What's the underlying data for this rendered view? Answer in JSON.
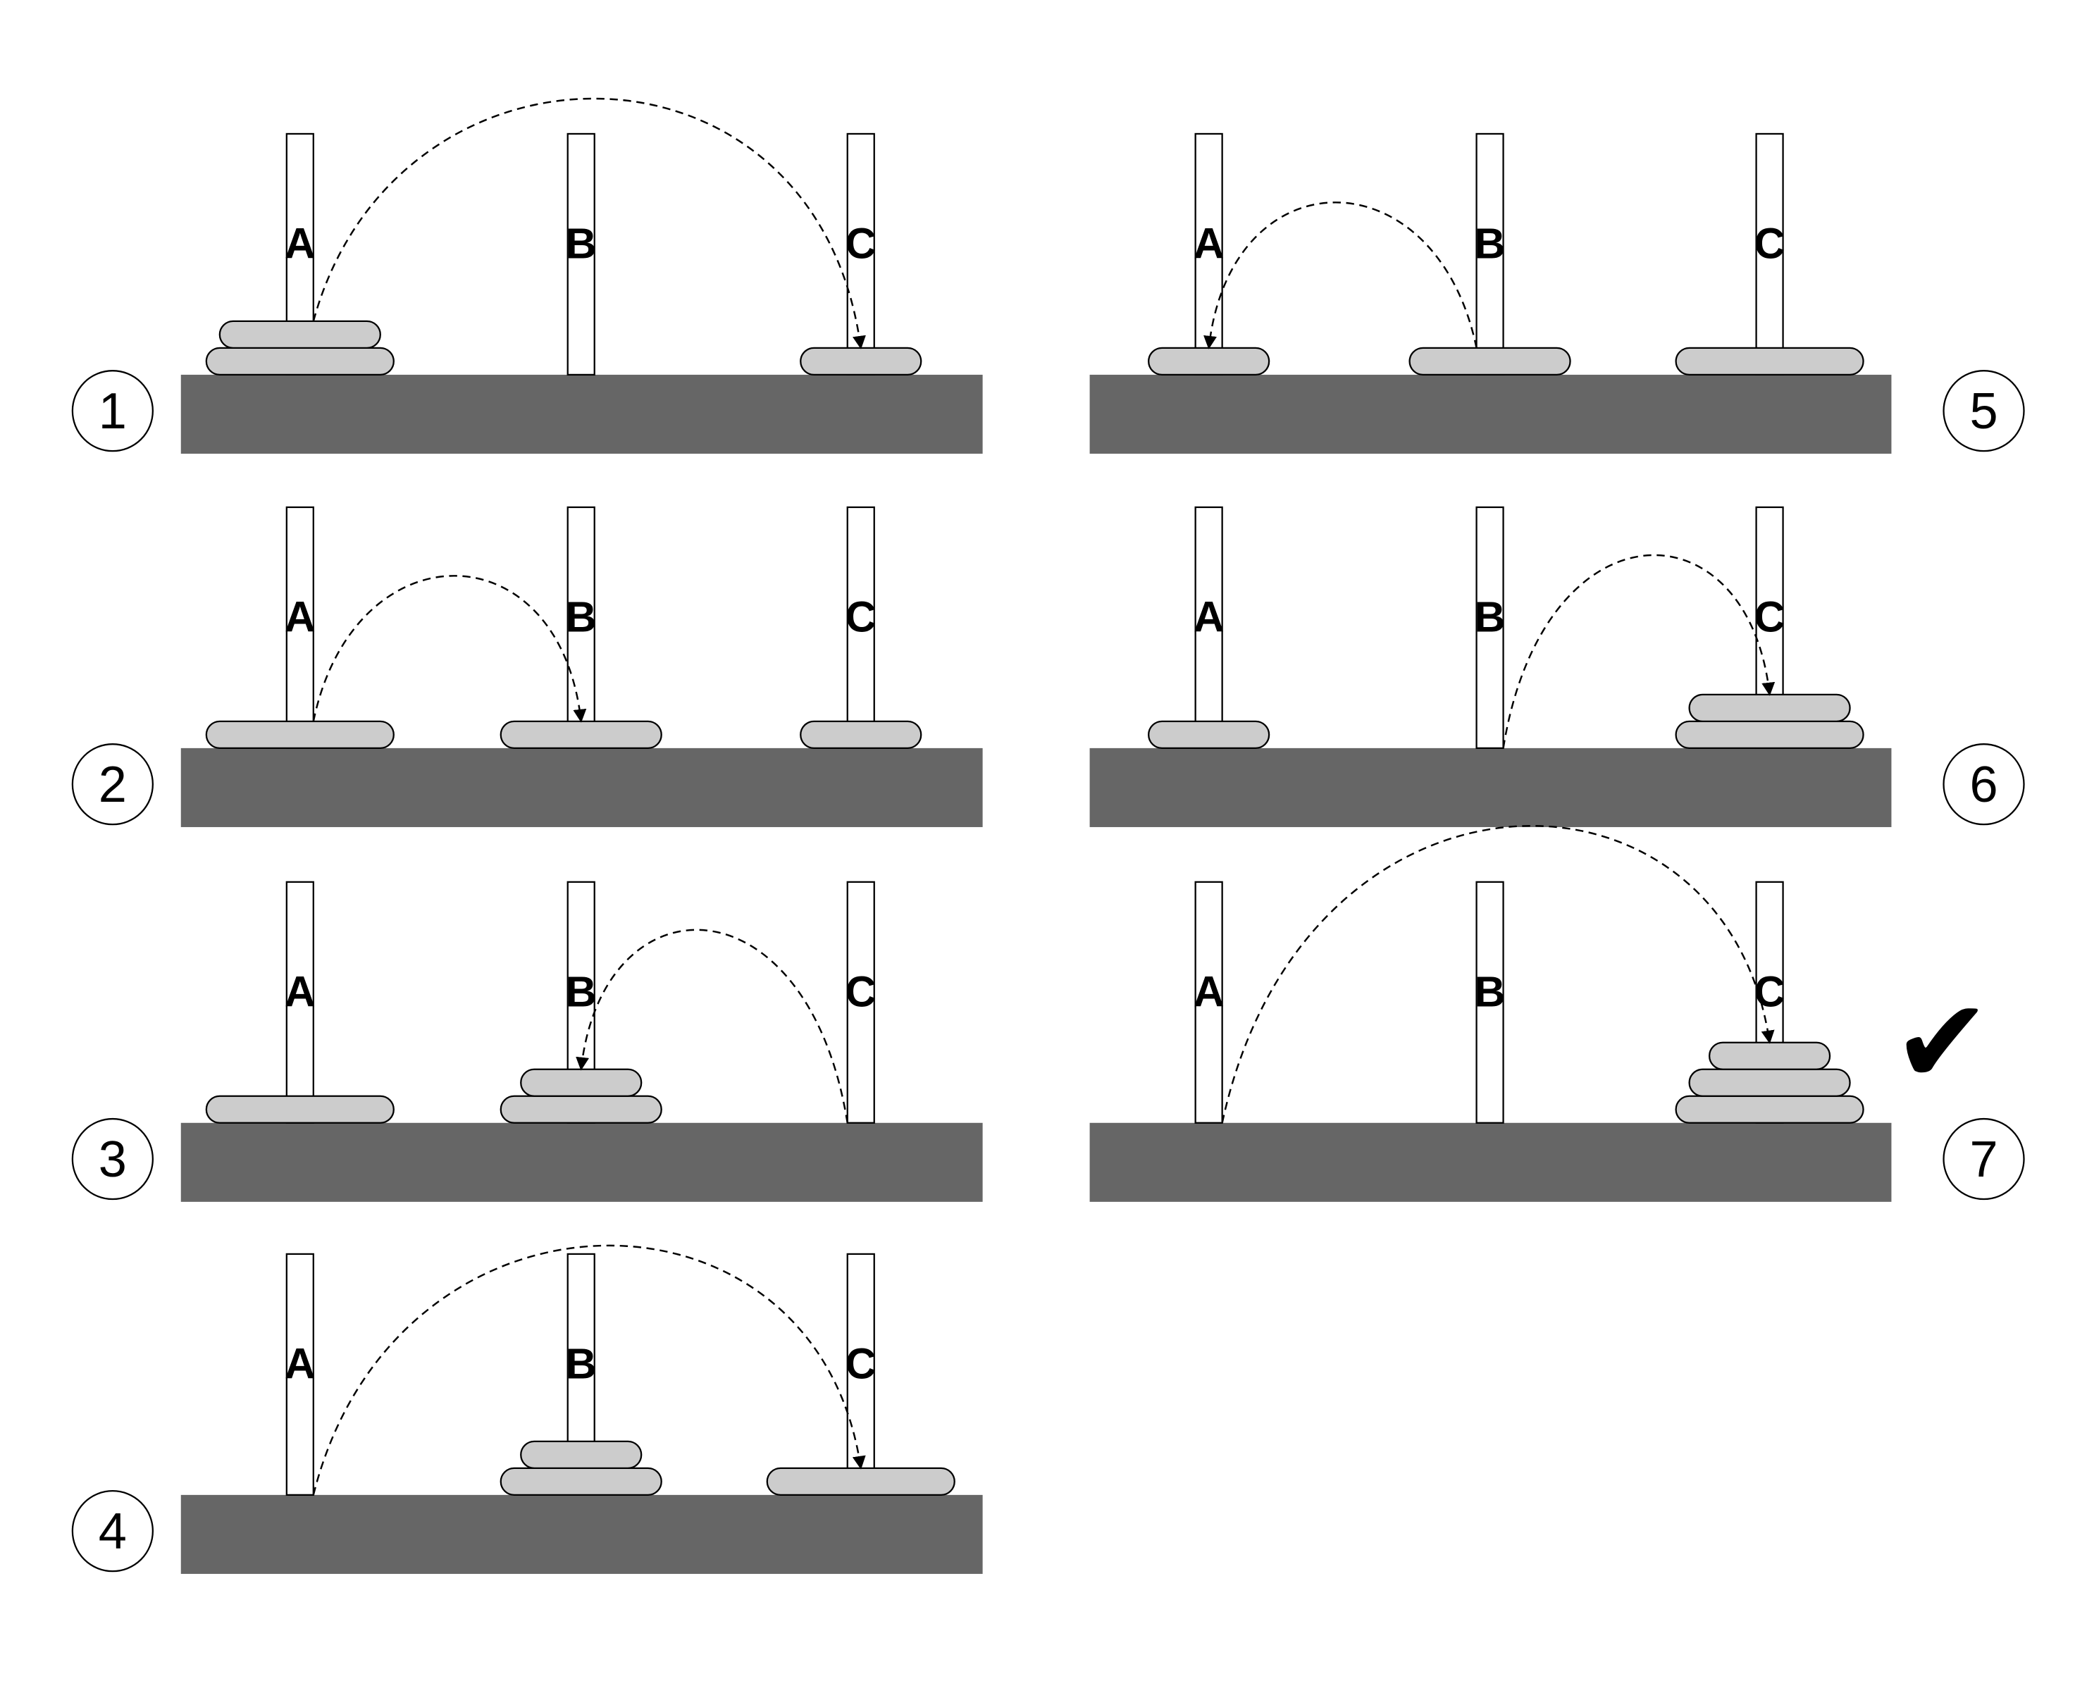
{
  "title": "",
  "peg_labels": [
    "A",
    "B",
    "C"
  ],
  "colors": {
    "base": "#666666",
    "disk": "#cccccc",
    "peg": "#ffffff",
    "stroke": "#000000",
    "arrow": "#000000"
  },
  "disk_sizes": {
    "small": 1,
    "medium": 2,
    "large": 3
  },
  "steps": [
    {
      "number": "1",
      "stacks": [
        [
          3,
          2
        ],
        [],
        [
          1
        ]
      ],
      "move": {
        "from": "A",
        "to": "C"
      }
    },
    {
      "number": "2",
      "stacks": [
        [
          3
        ],
        [
          2
        ],
        [
          1
        ]
      ],
      "move": {
        "from": "A",
        "to": "B"
      }
    },
    {
      "number": "3",
      "stacks": [
        [
          3
        ],
        [
          2,
          1
        ],
        []
      ],
      "move": {
        "from": "C",
        "to": "B"
      }
    },
    {
      "number": "4",
      "stacks": [
        [],
        [
          2,
          1
        ],
        [
          3
        ]
      ],
      "move": {
        "from": "A",
        "to": "C"
      }
    },
    {
      "number": "5",
      "stacks": [
        [
          1
        ],
        [
          2
        ],
        [
          3
        ]
      ],
      "move": {
        "from": "B",
        "to": "A"
      }
    },
    {
      "number": "6",
      "stacks": [
        [
          1
        ],
        [],
        [
          3,
          2
        ]
      ],
      "move": {
        "from": "B",
        "to": "C"
      }
    },
    {
      "number": "7",
      "stacks": [
        [],
        [],
        [
          3,
          2,
          1
        ]
      ],
      "move": {
        "from": "A",
        "to": "C"
      },
      "completed": true
    }
  ],
  "completion_mark": "✔",
  "completion_icon": "checkmark-icon"
}
